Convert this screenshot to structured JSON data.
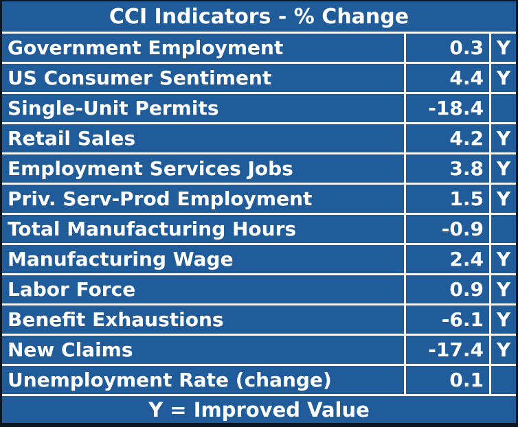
{
  "colors": {
    "background_blue": "#1f5c99",
    "grid_line": "#f5f8fb",
    "outer_border": "#0b1623",
    "text": "#ffffff"
  },
  "chart_data": {
    "type": "table",
    "title": "CCI Indicators - % Change",
    "legend": "Y = Improved Value",
    "rows": [
      {
        "label": "Government Employment",
        "value": "0.3",
        "improved": "Y"
      },
      {
        "label": "US Consumer Sentiment",
        "value": "4.4",
        "improved": "Y"
      },
      {
        "label": "Single-Unit Permits",
        "value": "-18.4",
        "improved": ""
      },
      {
        "label": "Retail Sales",
        "value": "4.2",
        "improved": "Y"
      },
      {
        "label": "Employment Services Jobs",
        "value": "3.8",
        "improved": "Y"
      },
      {
        "label": "Priv. Serv-Prod Employment",
        "value": "1.5",
        "improved": "Y"
      },
      {
        "label": "Total Manufacturing Hours",
        "value": "-0.9",
        "improved": ""
      },
      {
        "label": "Manufacturing Wage",
        "value": "2.4",
        "improved": "Y"
      },
      {
        "label": "Labor Force",
        "value": "0.9",
        "improved": "Y"
      },
      {
        "label": "Benefit Exhaustions",
        "value": "-6.1",
        "improved": "Y"
      },
      {
        "label": "New Claims",
        "value": "-17.4",
        "improved": "Y"
      },
      {
        "label": "Unemployment Rate (change)",
        "value": "0.1",
        "improved": ""
      }
    ]
  }
}
